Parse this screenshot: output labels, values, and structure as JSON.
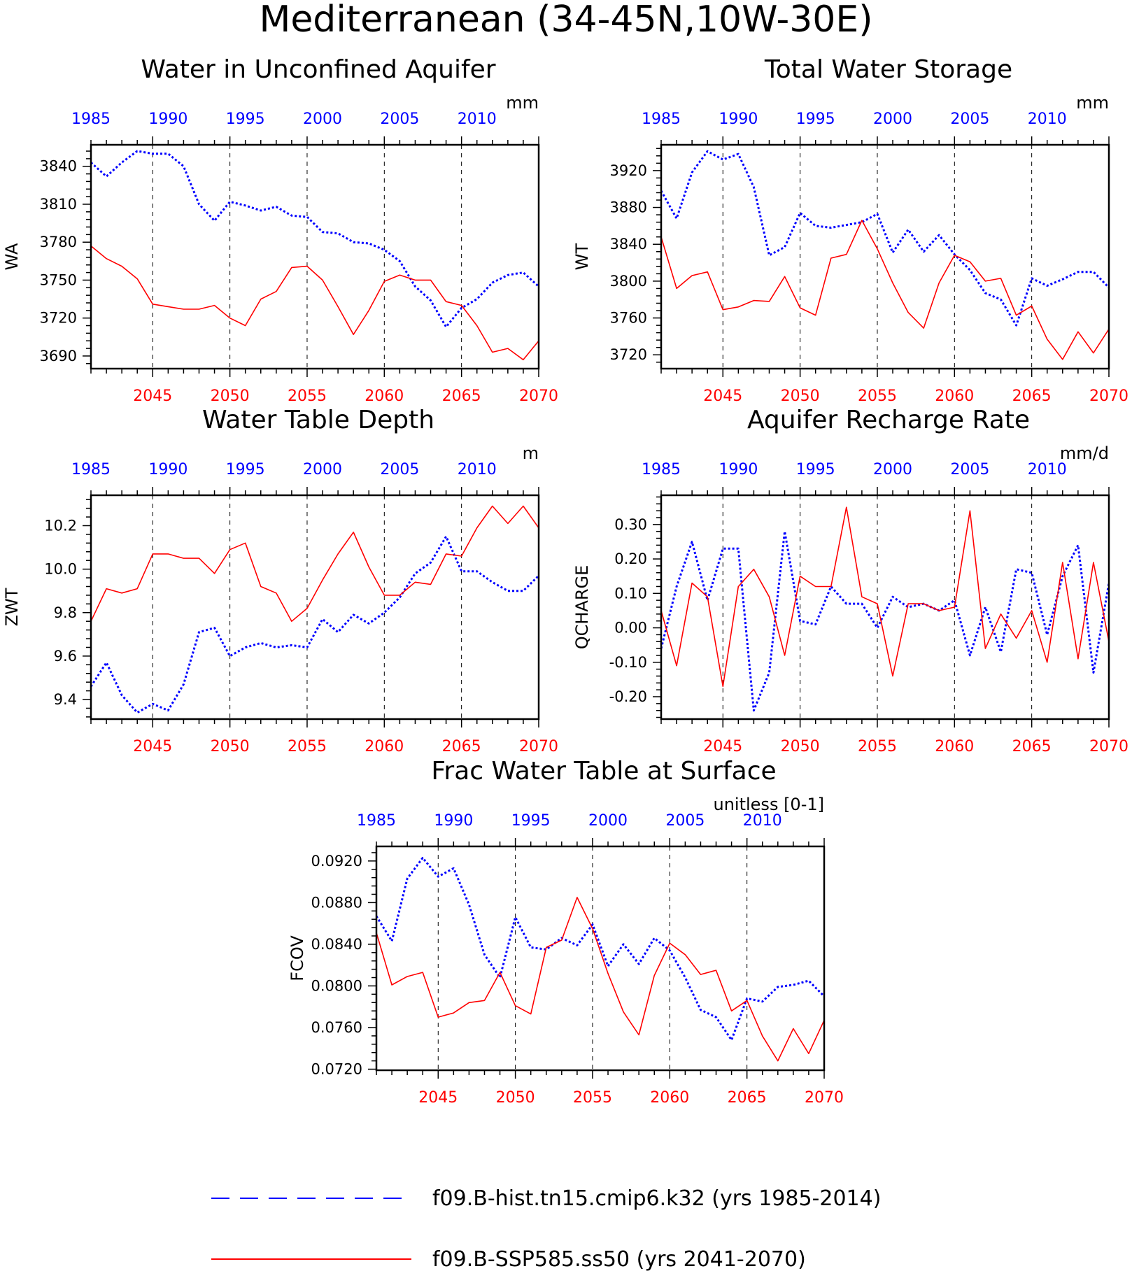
{
  "figure_title": "Mediterranean (34-45N,10W-30E)",
  "legend": [
    {
      "label": "f09.B-hist.tn15.cmip6.k32 (yrs 1985-2014)",
      "color": "#0000ff",
      "style": "dashed"
    },
    {
      "label": "f09.B-SSP585.ss50 (yrs 2041-2070)",
      "color": "#ff0000",
      "style": "solid"
    }
  ],
  "chart_data": [
    {
      "type": "line",
      "title": "Water in Unconfined Aquifer",
      "units": "mm",
      "ylabel": "WA",
      "ylim": [
        3680,
        3857
      ],
      "yticks": [
        3690,
        3720,
        3750,
        3780,
        3810,
        3840
      ],
      "ytick_labels": [
        "3690",
        "3720",
        "3750",
        "3780",
        "3810",
        "3840"
      ],
      "xlim": [
        2041,
        2070
      ],
      "x_bottom_ticks": [
        2045,
        2050,
        2055,
        2060,
        2065,
        2070
      ],
      "x_top_ticks": [
        1985,
        1990,
        1995,
        2000,
        2005,
        2010
      ],
      "x": [
        2041,
        2042,
        2043,
        2044,
        2045,
        2046,
        2047,
        2048,
        2049,
        2050,
        2051,
        2052,
        2053,
        2054,
        2055,
        2056,
        2057,
        2058,
        2059,
        2060,
        2061,
        2062,
        2063,
        2064,
        2065,
        2066,
        2067,
        2068,
        2069,
        2070
      ],
      "series": [
        {
          "name": "f09.B-hist.tn15.cmip6.k32 (yrs 1985-2014)",
          "color": "#0000ff",
          "style": "dotted",
          "values": [
            3843,
            3832,
            3843,
            3852,
            3850,
            3850,
            3840,
            3810,
            3797,
            3812,
            3809,
            3805,
            3808,
            3801,
            3800,
            3788,
            3787,
            3780,
            3779,
            3774,
            3765,
            3745,
            3734,
            3713,
            3728,
            3735,
            3748,
            3754,
            3756,
            3745
          ]
        },
        {
          "name": "f09.B-SSP585.ss50 (yrs 2041-2070)",
          "color": "#ff0000",
          "style": "solid",
          "values": [
            3777,
            3767,
            3761,
            3751,
            3731,
            3729,
            3727,
            3727,
            3730,
            3720,
            3714,
            3735,
            3741,
            3760,
            3761,
            3750,
            3729,
            3707,
            3726,
            3749,
            3754,
            3750,
            3750,
            3733,
            3730,
            3714,
            3693,
            3696,
            3687,
            3702
          ]
        }
      ]
    },
    {
      "type": "line",
      "title": "Total Water Storage",
      "units": "mm",
      "ylabel": "WT",
      "ylim": [
        3705,
        3948
      ],
      "yticks": [
        3720,
        3760,
        3800,
        3840,
        3880,
        3920
      ],
      "ytick_labels": [
        "3720",
        "3760",
        "3800",
        "3840",
        "3880",
        "3920"
      ],
      "xlim": [
        2041,
        2070
      ],
      "x_bottom_ticks": [
        2045,
        2050,
        2055,
        2060,
        2065,
        2070
      ],
      "x_top_ticks": [
        1985,
        1990,
        1995,
        2000,
        2005,
        2010
      ],
      "x": [
        2041,
        2042,
        2043,
        2044,
        2045,
        2046,
        2047,
        2048,
        2049,
        2050,
        2051,
        2052,
        2053,
        2054,
        2055,
        2056,
        2057,
        2058,
        2059,
        2060,
        2061,
        2062,
        2063,
        2064,
        2065,
        2066,
        2067,
        2068,
        2069,
        2070
      ],
      "series": [
        {
          "name": "f09.B-hist.tn15.cmip6.k32 (yrs 1985-2014)",
          "color": "#0000ff",
          "style": "dotted",
          "values": [
            3898,
            3868,
            3918,
            3941,
            3932,
            3938,
            3902,
            3828,
            3837,
            3874,
            3860,
            3858,
            3861,
            3864,
            3873,
            3831,
            3856,
            3832,
            3850,
            3829,
            3812,
            3787,
            3780,
            3752,
            3803,
            3795,
            3802,
            3810,
            3810,
            3793
          ]
        },
        {
          "name": "f09.B-SSP585.ss50 (yrs 2041-2070)",
          "color": "#ff0000",
          "style": "solid",
          "values": [
            3848,
            3792,
            3806,
            3810,
            3769,
            3772,
            3779,
            3778,
            3805,
            3771,
            3763,
            3825,
            3829,
            3866,
            3835,
            3798,
            3766,
            3749,
            3798,
            3828,
            3821,
            3800,
            3803,
            3763,
            3773,
            3737,
            3715,
            3745,
            3722,
            3748
          ]
        }
      ]
    },
    {
      "type": "line",
      "title": "Water Table Depth",
      "units": "m",
      "ylabel": "ZWT",
      "ylim": [
        9.31,
        10.34
      ],
      "yticks": [
        9.4,
        9.6,
        9.8,
        10.0,
        10.2
      ],
      "ytick_labels": [
        "9.4",
        "9.6",
        "9.8",
        "10.0",
        "10.2"
      ],
      "xlim": [
        2041,
        2070
      ],
      "x_bottom_ticks": [
        2045,
        2050,
        2055,
        2060,
        2065,
        2070
      ],
      "x_top_ticks": [
        1985,
        1990,
        1995,
        2000,
        2005,
        2010
      ],
      "x": [
        2041,
        2042,
        2043,
        2044,
        2045,
        2046,
        2047,
        2048,
        2049,
        2050,
        2051,
        2052,
        2053,
        2054,
        2055,
        2056,
        2057,
        2058,
        2059,
        2060,
        2061,
        2062,
        2063,
        2064,
        2065,
        2066,
        2067,
        2068,
        2069,
        2070
      ],
      "series": [
        {
          "name": "f09.B-hist.tn15.cmip6.k32 (yrs 1985-2014)",
          "color": "#0000ff",
          "style": "dotted",
          "values": [
            9.46,
            9.57,
            9.42,
            9.34,
            9.38,
            9.35,
            9.47,
            9.71,
            9.73,
            9.6,
            9.64,
            9.66,
            9.64,
            9.65,
            9.64,
            9.77,
            9.71,
            9.79,
            9.75,
            9.8,
            9.87,
            9.98,
            10.03,
            10.15,
            9.99,
            9.99,
            9.94,
            9.9,
            9.9,
            9.97
          ]
        },
        {
          "name": "f09.B-SSP585.ss50 (yrs 2041-2070)",
          "color": "#ff0000",
          "style": "solid",
          "values": [
            9.76,
            9.91,
            9.89,
            9.91,
            10.07,
            10.07,
            10.05,
            10.05,
            9.98,
            10.09,
            10.12,
            9.92,
            9.89,
            9.76,
            9.82,
            9.95,
            10.07,
            10.17,
            10.01,
            9.88,
            9.88,
            9.94,
            9.93,
            10.07,
            10.06,
            10.19,
            10.29,
            10.21,
            10.29,
            10.19
          ]
        }
      ]
    },
    {
      "type": "line",
      "title": "Aquifer Recharge Rate",
      "units": "mm/d",
      "ylabel": "QCHARGE",
      "ylim": [
        -0.265,
        0.385
      ],
      "yticks": [
        -0.2,
        -0.1,
        0.0,
        0.1,
        0.2,
        0.3
      ],
      "ytick_labels": [
        "-0.20",
        "-0.10",
        "0.00",
        "0.10",
        "0.20",
        "0.30"
      ],
      "xlim": [
        2041,
        2070
      ],
      "x_bottom_ticks": [
        2045,
        2050,
        2055,
        2060,
        2065,
        2070
      ],
      "x_top_ticks": [
        1985,
        1990,
        1995,
        2000,
        2005,
        2010
      ],
      "x": [
        2041,
        2042,
        2043,
        2044,
        2045,
        2046,
        2047,
        2048,
        2049,
        2050,
        2051,
        2052,
        2053,
        2054,
        2055,
        2056,
        2057,
        2058,
        2059,
        2060,
        2061,
        2062,
        2063,
        2064,
        2065,
        2066,
        2067,
        2068,
        2069,
        2070
      ],
      "series": [
        {
          "name": "f09.B-hist.tn15.cmip6.k32 (yrs 1985-2014)",
          "color": "#0000ff",
          "style": "dotted",
          "values": [
            -0.06,
            0.12,
            0.25,
            0.08,
            0.23,
            0.23,
            -0.24,
            -0.13,
            0.28,
            0.02,
            0.01,
            0.12,
            0.07,
            0.07,
            0.0,
            0.09,
            0.06,
            0.07,
            0.05,
            0.08,
            -0.08,
            0.06,
            -0.07,
            0.17,
            0.16,
            -0.02,
            0.15,
            0.24,
            -0.13,
            0.13
          ]
        },
        {
          "name": "f09.B-SSP585.ss50 (yrs 2041-2070)",
          "color": "#ff0000",
          "style": "solid",
          "values": [
            0.05,
            -0.11,
            0.13,
            0.09,
            -0.17,
            0.12,
            0.17,
            0.09,
            -0.08,
            0.15,
            0.12,
            0.12,
            0.35,
            0.09,
            0.07,
            -0.14,
            0.07,
            0.07,
            0.05,
            0.06,
            0.34,
            -0.06,
            0.04,
            -0.03,
            0.05,
            -0.1,
            0.19,
            -0.09,
            0.19,
            -0.04
          ]
        }
      ]
    },
    {
      "type": "line",
      "title": "Frac Water Table at Surface",
      "units": "unitless [0-1]",
      "ylabel": "FCOV",
      "ylim": [
        0.0719,
        0.0934
      ],
      "yticks": [
        0.072,
        0.076,
        0.08,
        0.084,
        0.088,
        0.092
      ],
      "ytick_labels": [
        "0.0720",
        "0.0760",
        "0.0800",
        "0.0840",
        "0.0880",
        "0.0920"
      ],
      "xlim": [
        2041,
        2070
      ],
      "x_bottom_ticks": [
        2045,
        2050,
        2055,
        2060,
        2065,
        2070
      ],
      "x_top_ticks": [
        1985,
        1990,
        1995,
        2000,
        2005,
        2010
      ],
      "x": [
        2041,
        2042,
        2043,
        2044,
        2045,
        2046,
        2047,
        2048,
        2049,
        2050,
        2051,
        2052,
        2053,
        2054,
        2055,
        2056,
        2057,
        2058,
        2059,
        2060,
        2061,
        2062,
        2063,
        2064,
        2065,
        2066,
        2067,
        2068,
        2069,
        2070
      ],
      "series": [
        {
          "name": "f09.B-hist.tn15.cmip6.k32 (yrs 1985-2014)",
          "color": "#0000ff",
          "style": "dotted",
          "values": [
            0.0867,
            0.0843,
            0.0903,
            0.0923,
            0.0905,
            0.0913,
            0.0878,
            0.083,
            0.0808,
            0.0866,
            0.0837,
            0.0835,
            0.0846,
            0.0839,
            0.0859,
            0.0819,
            0.084,
            0.0821,
            0.0846,
            0.0834,
            0.0808,
            0.0777,
            0.077,
            0.0748,
            0.0788,
            0.0785,
            0.0799,
            0.0801,
            0.0805,
            0.079
          ]
        },
        {
          "name": "f09.B-SSP585.ss50 (yrs 2041-2070)",
          "color": "#ff0000",
          "style": "solid",
          "values": [
            0.0851,
            0.0801,
            0.0809,
            0.0813,
            0.077,
            0.0774,
            0.0784,
            0.0786,
            0.0813,
            0.0781,
            0.0773,
            0.0837,
            0.0844,
            0.0885,
            0.0855,
            0.0812,
            0.0775,
            0.0753,
            0.081,
            0.0841,
            0.083,
            0.0811,
            0.0815,
            0.0776,
            0.0786,
            0.0752,
            0.0728,
            0.0759,
            0.0735,
            0.0767
          ]
        }
      ]
    }
  ]
}
